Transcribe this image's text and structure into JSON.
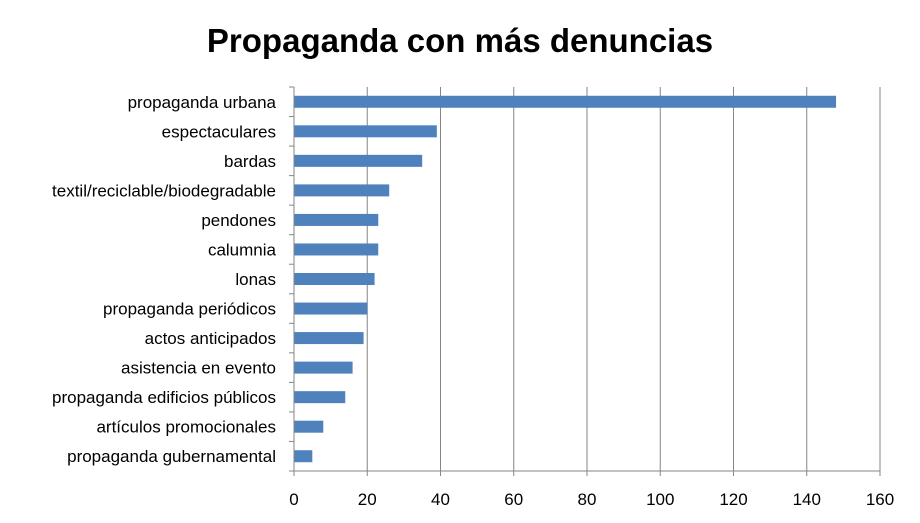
{
  "chart_data": {
    "type": "bar",
    "orientation": "horizontal",
    "title": "Propaganda con más denuncias",
    "xlabel": "",
    "ylabel": "",
    "categories": [
      "propaganda urbana",
      "espectaculares",
      "bardas",
      "textil/reciclable/biodegradable",
      "pendones",
      "calumnia",
      "lonas",
      "propaganda periódicos",
      "actos anticipados",
      "asistencia en evento",
      "propaganda edificios públicos",
      "artículos promocionales",
      "propaganda gubernamental"
    ],
    "values": [
      148,
      39,
      35,
      26,
      23,
      23,
      22,
      20,
      19,
      16,
      14,
      8,
      5
    ],
    "xlim": [
      0,
      160
    ],
    "xticks": [
      "0",
      "20",
      "40",
      "60",
      "80",
      "100",
      "120",
      "140",
      "160"
    ],
    "grid": true,
    "legend": "none",
    "bar_color": "#4F81BD"
  }
}
